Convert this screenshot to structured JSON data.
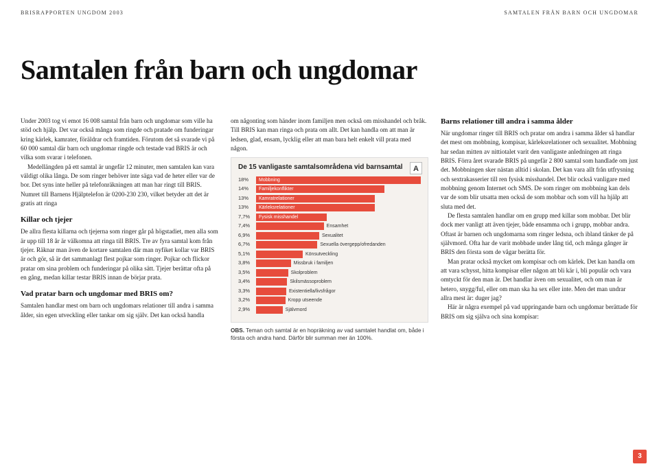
{
  "header": {
    "left": "BRISRAPPORTEN UNGDOM 2003",
    "right": "SAMTALEN FRÅN BARN OCH UNGDOMAR"
  },
  "title": "Samtalen från barn och ungdomar",
  "col1": {
    "p1": "Under 2003 tog vi emot 16 008 samtal från barn och ungdomar som ville ha stöd och hjälp. Det var också många som ringde och pratade om funderingar kring kärlek, kamrater, föräldrar och framtiden. Förutom det så svarade vi på 60 000 samtal där barn och ungdomar ringde och testade vad BRIS är och vilka som svarar i telefonen.",
    "p2": "Medellängden på ett samtal är ungefär 12 minuter, men samtalen kan vara väldigt olika långa. De som ringer behöver inte säga vad de heter eller var de bor. Det syns inte heller på telefonräkningen att man har ringt till BRIS. Numret till Barnens Hjälptelefon är 0200-230 230, vilket betyder att det är gratis att ringa",
    "sub1": "Killar och tjejer",
    "p3": "De allra flesta killarna och tjejerna som ringer går på högstadiet, men alla som är upp till 18 år är välkomna att ringa till BRIS. Tre av fyra samtal kom från tjejer. Räknar man även de kortare samtalen där man nyfiket kollar var BRIS är och gör, så är det sammanlagt flest pojkar som ringer. Pojkar och flickor pratar om sina problem och funderingar på olika sätt. Tjejer berättar ofta på en gång, medan killar testar BRIS innan de börjar prata.",
    "sub2": "Vad pratar barn och ungdomar med BRIS om?",
    "p4": "Samtalen handlar mest om barn och ungdomars relationer till andra i samma ålder, sin egen utveckling eller tankar om sig själv. Det kan också handla"
  },
  "col2": {
    "p1": "om någonting som händer inom familjen men också om misshandel och bråk. Till BRIS kan man ringa och prata om allt. Det kan handla om att man är ledsen, glad, ensam, lycklig eller att man bara helt enkelt vill prata med någon.",
    "obs": "OBS. Teman och samtal är en hopräkning av vad samtalet handlat om, både i första och andra hand. Därför blir summan mer än 100%."
  },
  "chart": {
    "title": "De 15 vanligaste samtalsområdena vid barnsamtal",
    "badge": "A",
    "max_pct": 18,
    "bar_color": "#e74c3c",
    "bg_color": "#f5f2ee",
    "label_inside_threshold": 7.5,
    "rows": [
      {
        "pct": "18%",
        "value": 18,
        "label": "Mobbning"
      },
      {
        "pct": "14%",
        "value": 14,
        "label": "Familjekonflikter"
      },
      {
        "pct": "13%",
        "value": 13,
        "label": "Kamratrelationer"
      },
      {
        "pct": "13%",
        "value": 13,
        "label": "Kärleksrelationer"
      },
      {
        "pct": "7,7%",
        "value": 7.7,
        "label": "Fysisk misshandel"
      },
      {
        "pct": "7,4%",
        "value": 7.4,
        "label": "Ensamhet"
      },
      {
        "pct": "6,9%",
        "value": 6.9,
        "label": "Sexualitet"
      },
      {
        "pct": "6,7%",
        "value": 6.7,
        "label": "Sexuella övergepp/ofredanden"
      },
      {
        "pct": "5,1%",
        "value": 5.1,
        "label": "Könsutveckling"
      },
      {
        "pct": "3,8%",
        "value": 3.8,
        "label": "Missbruk i familjen"
      },
      {
        "pct": "3,5%",
        "value": 3.5,
        "label": "Skolproblem"
      },
      {
        "pct": "3,4%",
        "value": 3.4,
        "label": "Skilsmässoproblem"
      },
      {
        "pct": "3,3%",
        "value": 3.3,
        "label": "Existentiella/livsfrågor"
      },
      {
        "pct": "3,2%",
        "value": 3.2,
        "label": "Kropp utseende"
      },
      {
        "pct": "2,9%",
        "value": 2.9,
        "label": "Självmord"
      }
    ]
  },
  "col3": {
    "sub1": "Barns relationer till andra i samma ålder",
    "p1": "När ungdomar ringer till BRIS och pratar om andra i samma ålder så handlar det mest om mobbning, kompisar, kärleksrelationer och sexualitet. Mobbning har sedan mitten av nittiotalet varit den vanligaste anledningen att ringa BRIS. Förra året svarade BRIS på ungefär 2 800 samtal som handlade om just det. Mobbningen sker nästan alltid i skolan. Det kan vara allt från utfrysning och sextrakasserier till ren fysisk misshandel. Det blir också vanligare med mobbning genom Internet och SMS. De som ringer om mobbning kan dels var de som blir utsatta men också de som mobbar och som vill ha hjälp att sluta med det.",
    "p2": "De flesta samtalen handlar om en grupp med killar som mobbar. Det blir dock mer vanligt att även tjejer, både ensamma och i grupp, mobbar andra. Oftast är barnen och ungdomarna som ringer ledsna, och ibland tänker de på självmord. Ofta har de varit mobbade under lång tid, och många gånger är BRIS den första som de vågar berätta för.",
    "p3": "Man pratar också mycket om kompisar och om kärlek. Det kan handla om att vara schysst, hitta kompisar eller någon att bli kär i, bli populär och vara omtyckt för den man är. Det handlar även om sexualitet, och om man är hetero, snygg/ful, eller om man ska ha sex eller inte. Men det man undrar allra mest är: duger jag?",
    "p4": "Här är några exempel på vad uppringande barn och ungdomar berättade för BRIS om sig själva och sina kompisar:"
  },
  "pagenum": "3"
}
